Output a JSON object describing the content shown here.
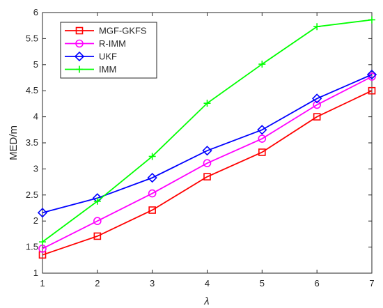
{
  "chart_data": {
    "type": "line",
    "title": "",
    "xlabel": "λ",
    "ylabel": "MED/m",
    "x": [
      1,
      2,
      3,
      4,
      5,
      6,
      7
    ],
    "xlim": [
      1,
      7
    ],
    "ylim": [
      1,
      6
    ],
    "xticks": [
      "1",
      "2",
      "3",
      "4",
      "5",
      "6",
      "7"
    ],
    "yticks": [
      "1",
      "1.5",
      "2",
      "2.5",
      "3",
      "3.5",
      "4",
      "4.5",
      "5",
      "5.5",
      "6"
    ],
    "grid": false,
    "legend_position": "top-left",
    "series": [
      {
        "name": "MGF-GKFS",
        "color": "#ff0000",
        "marker": "square",
        "values": [
          1.35,
          1.71,
          2.21,
          2.85,
          3.32,
          4.0,
          4.5
        ]
      },
      {
        "name": "R-IMM",
        "color": "#ff00ff",
        "marker": "circle",
        "values": [
          1.47,
          2.0,
          2.53,
          3.11,
          3.58,
          4.23,
          4.77
        ]
      },
      {
        "name": "UKF",
        "color": "#0000ff",
        "marker": "diamond",
        "values": [
          2.16,
          2.44,
          2.83,
          3.35,
          3.75,
          4.35,
          4.81
        ]
      },
      {
        "name": "IMM",
        "color": "#00ff00",
        "marker": "plus",
        "values": [
          1.6,
          2.38,
          3.24,
          4.26,
          5.01,
          5.73,
          5.86
        ]
      }
    ]
  }
}
